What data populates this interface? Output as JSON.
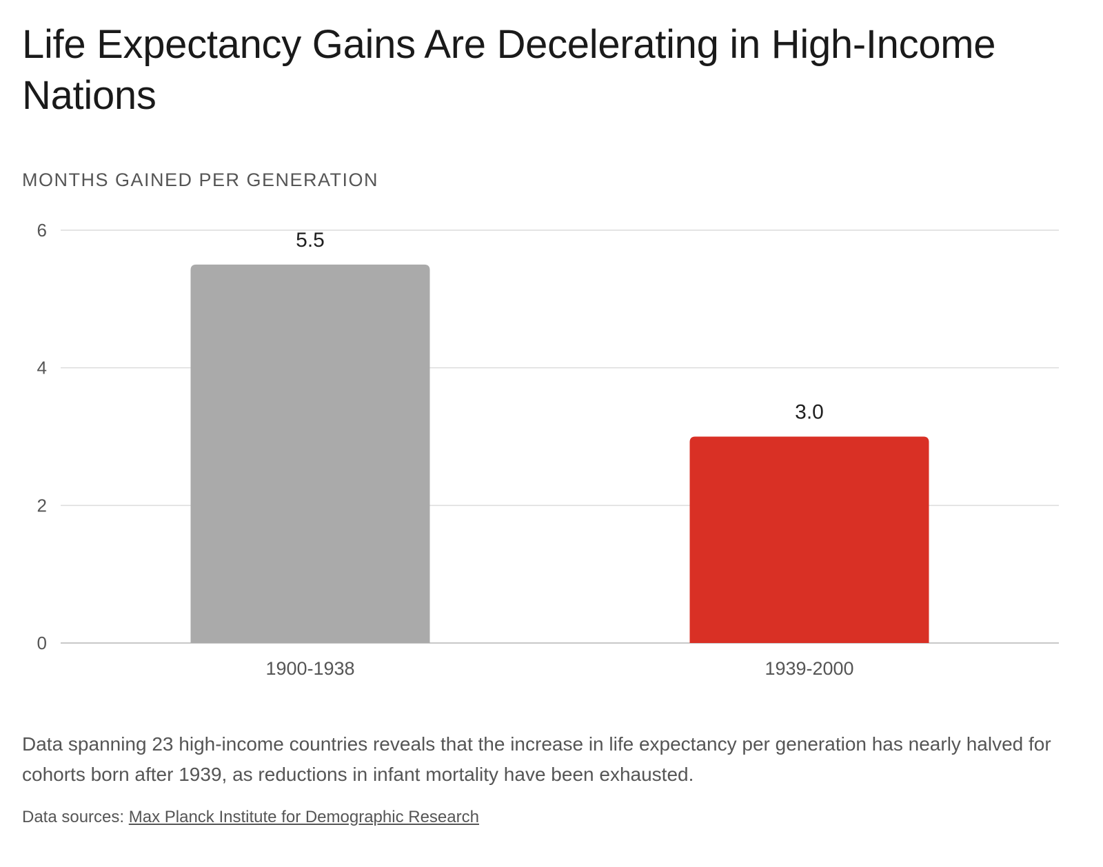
{
  "title": "Life Expectancy Gains Are Decelerating in High-Income Nations",
  "description": "Data spanning 23 high-income countries reveals that the increase in life expectancy per generation has nearly halved for cohorts born after 1939, as reductions in infant mortality have been exhausted.",
  "sources": {
    "label": "Data sources:",
    "link_text": "Max Planck Institute for Demographic Research"
  },
  "colors": {
    "bar_1900_1938": "#aaaaaa",
    "bar_1939_2000": "#d93025"
  },
  "chart_data": {
    "type": "bar",
    "ylabel": "MONTHS GAINED PER GENERATION",
    "categories": [
      "1900-1938",
      "1939-2000"
    ],
    "values": [
      5.5,
      3.0
    ],
    "data_labels": [
      "5.5",
      "3.0"
    ],
    "ylim": [
      0,
      6
    ],
    "yticks": [
      0,
      2,
      4,
      6
    ],
    "grid": true,
    "legend": "none"
  }
}
